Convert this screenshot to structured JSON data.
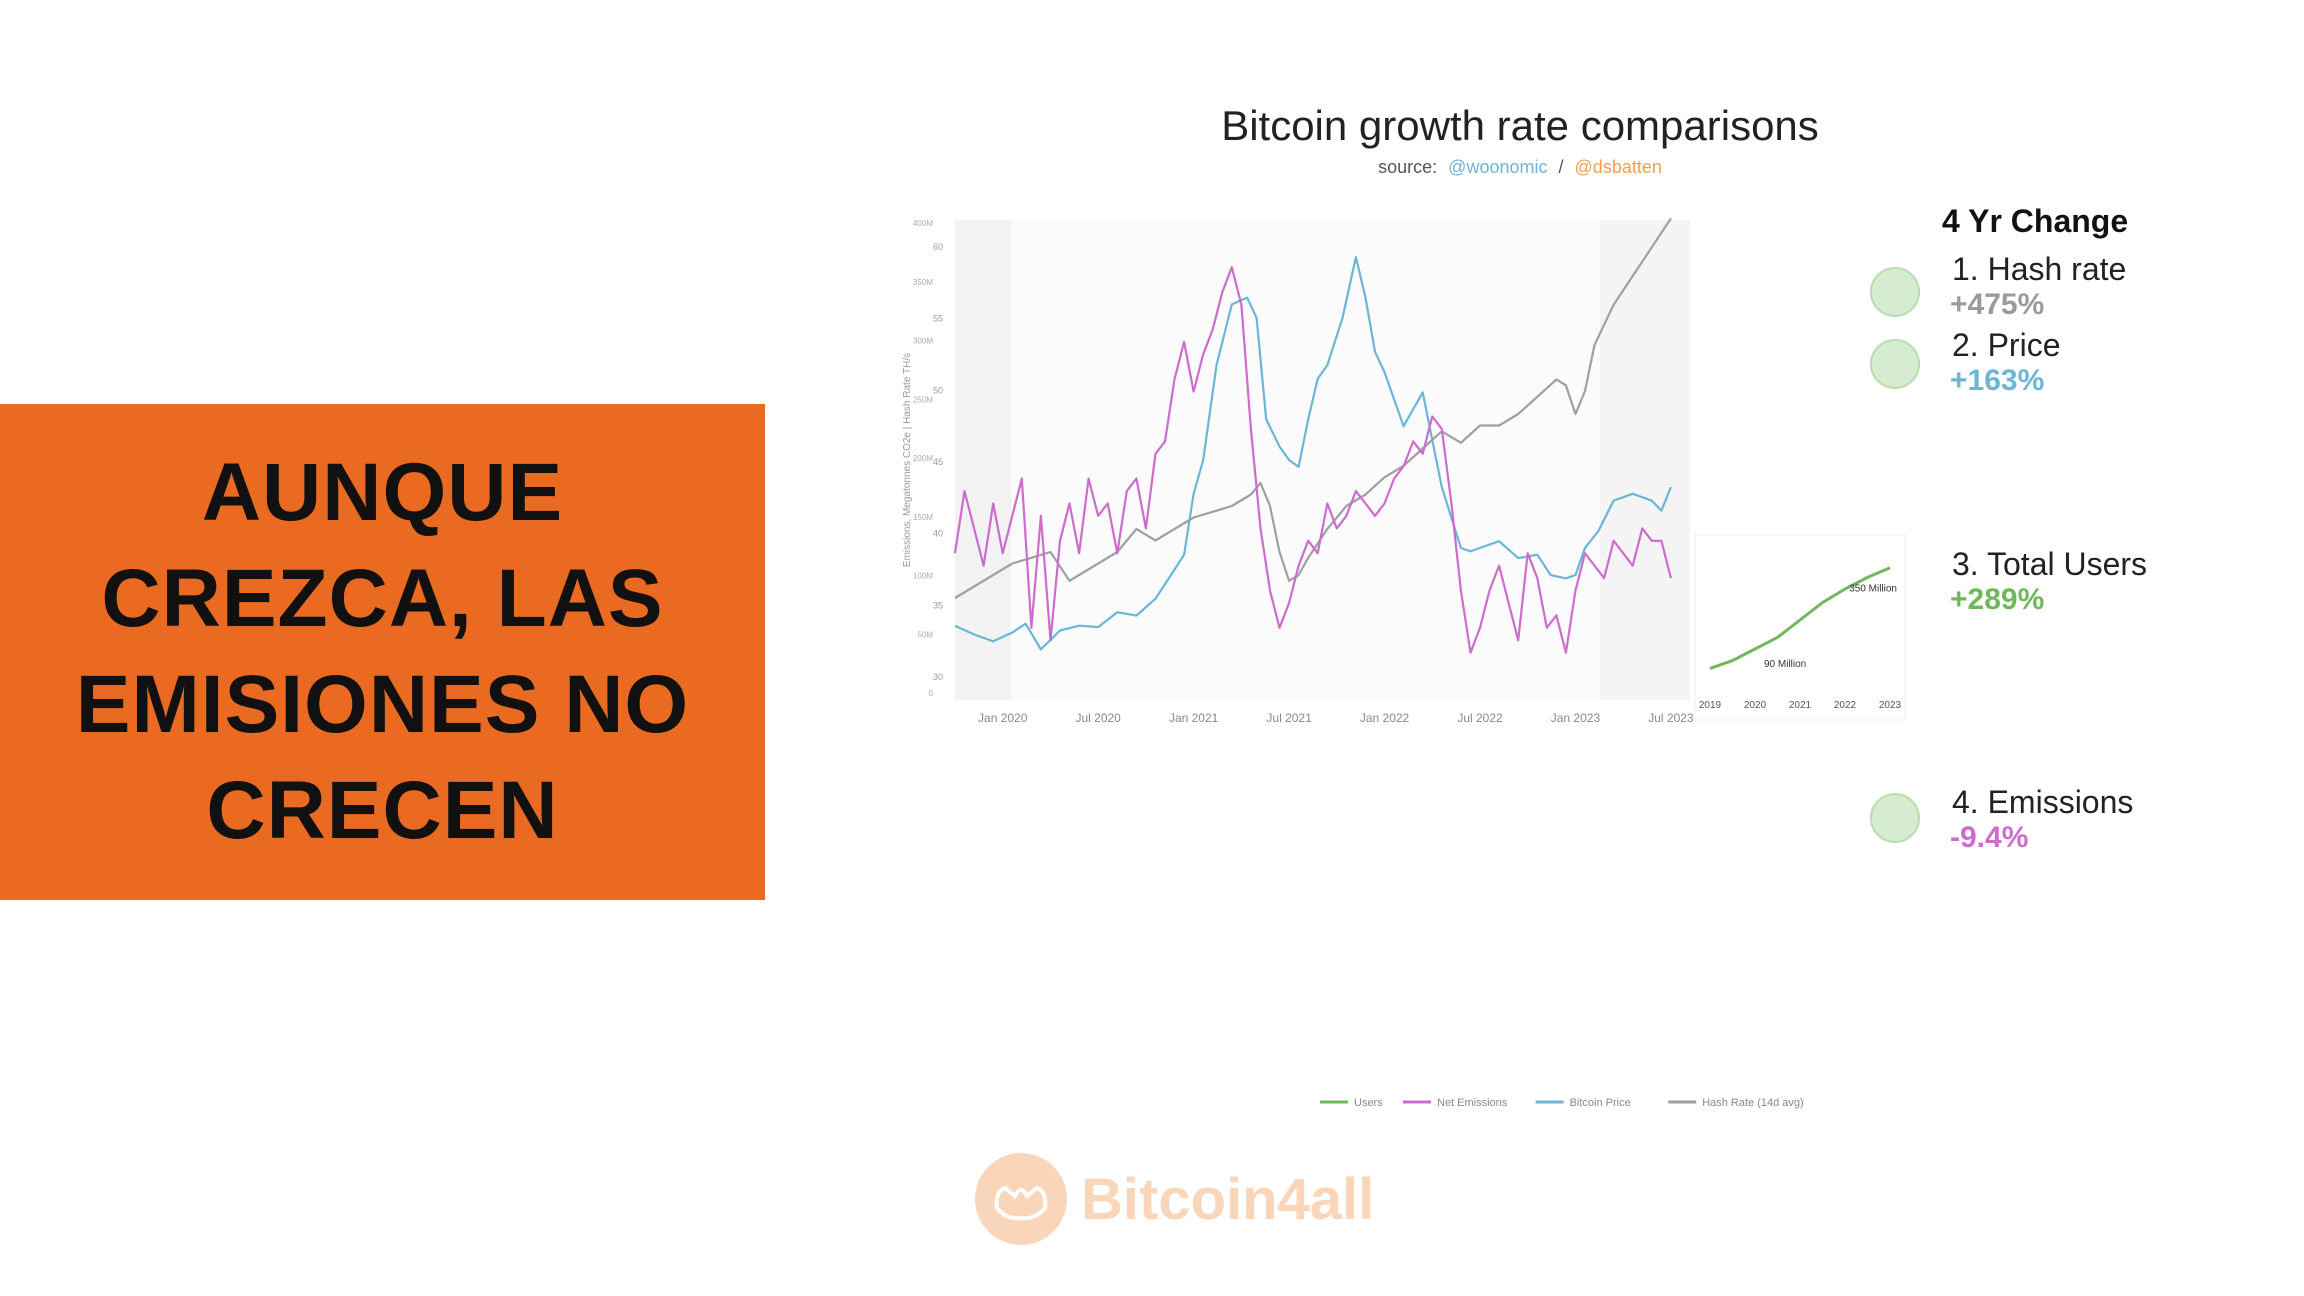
{
  "banner": {
    "lines": [
      "AUNQUE",
      "CREZCA, LAS",
      "EMISIONES NO",
      "CRECEN"
    ]
  },
  "chart_data": {
    "type": "line",
    "title": "Bitcoin growth rate comparisons",
    "source_prefix": "source:",
    "source_a": "@woonomic",
    "source_sep": "/",
    "source_b": "@dsbatten",
    "ylabel": "Emissions, Megatonnes CO2e | Hash Rate TH/s",
    "x_ticks": [
      "Jan 2020",
      "Jul 2020",
      "Jan 2021",
      "Jul 2021",
      "Jan 2022",
      "Jul 2022",
      "Jan 2023",
      "Jul 2023"
    ],
    "y_left_ticks": [
      "60",
      "55",
      "50",
      "45",
      "40",
      "35",
      "30"
    ],
    "y_right_ticks": [
      "400M",
      "350M",
      "300M",
      "250M",
      "200M",
      "150M",
      "100M",
      "50M",
      "0"
    ],
    "x_range": [
      2019.75,
      2023.6
    ],
    "emissions_range": [
      25,
      62
    ],
    "hash_range": [
      0,
      400
    ],
    "price_range": [
      0,
      68000
    ],
    "series": [
      {
        "name": "Bitcoin Price",
        "color": "#6bb6d6",
        "x": [
          2019.75,
          2019.85,
          2019.95,
          2020.05,
          2020.12,
          2020.2,
          2020.3,
          2020.4,
          2020.5,
          2020.6,
          2020.7,
          2020.8,
          2020.87,
          2020.95,
          2021.0,
          2021.05,
          2021.12,
          2021.2,
          2021.28,
          2021.33,
          2021.38,
          2021.45,
          2021.5,
          2021.55,
          2021.6,
          2021.65,
          2021.7,
          2021.78,
          2021.85,
          2021.9,
          2021.95,
          2022.0,
          2022.1,
          2022.2,
          2022.3,
          2022.4,
          2022.45,
          2022.5,
          2022.6,
          2022.7,
          2022.8,
          2022.87,
          2022.95,
          2023.0,
          2023.05,
          2023.12,
          2023.2,
          2023.3,
          2023.4,
          2023.45,
          2023.5
        ],
        "y": [
          9500,
          8200,
          7200,
          8500,
          9800,
          6000,
          8800,
          9500,
          9300,
          11500,
          11000,
          13500,
          16500,
          20000,
          29000,
          34000,
          48000,
          57000,
          58000,
          55000,
          40000,
          36000,
          34000,
          33000,
          40000,
          46000,
          48000,
          55000,
          64000,
          58000,
          50000,
          47000,
          39000,
          44000,
          30000,
          21000,
          20500,
          21000,
          22000,
          19500,
          20000,
          17000,
          16500,
          17000,
          21000,
          23500,
          28000,
          29000,
          28000,
          26500,
          30000
        ]
      },
      {
        "name": "Hash Rate (14d avg)",
        "color": "#a0a0a0",
        "x": [
          2019.75,
          2019.85,
          2019.95,
          2020.05,
          2020.15,
          2020.25,
          2020.35,
          2020.4,
          2020.5,
          2020.6,
          2020.7,
          2020.8,
          2020.9,
          2021.0,
          2021.1,
          2021.2,
          2021.3,
          2021.35,
          2021.4,
          2021.45,
          2021.5,
          2021.55,
          2021.6,
          2021.7,
          2021.8,
          2021.9,
          2022.0,
          2022.1,
          2022.2,
          2022.3,
          2022.4,
          2022.5,
          2022.6,
          2022.7,
          2022.8,
          2022.9,
          2022.95,
          2023.0,
          2023.05,
          2023.1,
          2023.2,
          2023.3,
          2023.4,
          2023.5
        ],
        "y": [
          80,
          90,
          100,
          110,
          115,
          120,
          95,
          100,
          110,
          120,
          140,
          130,
          140,
          150,
          155,
          160,
          170,
          180,
          160,
          120,
          95,
          100,
          115,
          140,
          160,
          170,
          185,
          195,
          210,
          225,
          215,
          230,
          230,
          240,
          255,
          270,
          265,
          240,
          260,
          300,
          335,
          360,
          385,
          410
        ]
      },
      {
        "name": "Net Emissions",
        "color": "#cc6ccc",
        "x": [
          2019.75,
          2019.8,
          2019.85,
          2019.9,
          2019.95,
          2020.0,
          2020.05,
          2020.1,
          2020.15,
          2020.2,
          2020.25,
          2020.3,
          2020.35,
          2020.4,
          2020.45,
          2020.5,
          2020.55,
          2020.6,
          2020.65,
          2020.7,
          2020.75,
          2020.8,
          2020.85,
          2020.9,
          2020.95,
          2021.0,
          2021.05,
          2021.1,
          2021.15,
          2021.2,
          2021.25,
          2021.3,
          2021.35,
          2021.4,
          2021.45,
          2021.5,
          2021.55,
          2021.6,
          2021.65,
          2021.7,
          2021.75,
          2021.8,
          2021.85,
          2021.9,
          2021.95,
          2022.0,
          2022.05,
          2022.1,
          2022.15,
          2022.2,
          2022.25,
          2022.3,
          2022.35,
          2022.4,
          2022.45,
          2022.5,
          2022.55,
          2022.6,
          2022.65,
          2022.7,
          2022.75,
          2022.8,
          2022.85,
          2022.9,
          2022.95,
          2023.0,
          2023.05,
          2023.1,
          2023.15,
          2023.2,
          2023.25,
          2023.3,
          2023.35,
          2023.4,
          2023.45,
          2023.5
        ],
        "y": [
          36,
          41,
          38,
          35,
          40,
          36,
          39,
          42,
          30,
          39,
          29,
          37,
          40,
          36,
          42,
          39,
          40,
          36,
          41,
          42,
          38,
          44,
          45,
          50,
          53,
          49,
          52,
          54,
          57,
          59,
          56,
          46,
          38,
          33,
          30,
          32,
          35,
          37,
          36,
          40,
          38,
          39,
          41,
          40,
          39,
          40,
          42,
          43,
          45,
          44,
          47,
          46,
          40,
          33,
          28,
          30,
          33,
          35,
          32,
          29,
          36,
          34,
          30,
          31,
          28,
          33,
          36,
          35,
          34,
          37,
          36,
          35,
          38,
          37,
          37,
          34
        ]
      },
      {
        "name": "Users",
        "color": "#6fb85a",
        "x": [],
        "y": []
      }
    ],
    "legend_position": "bottom",
    "changes_heading": "4 Yr Change",
    "changes": [
      {
        "label": "1. Hash rate",
        "value": "+475%",
        "color": "#9a9a9a"
      },
      {
        "label": "2. Price",
        "value": "+163%",
        "color": "#6bb6d6"
      },
      {
        "label": "3. Total Users",
        "value": "+289%",
        "color": "#6fb85a"
      },
      {
        "label": "4. Emissions",
        "value": "-9.4%",
        "color": "#cc6ccc"
      }
    ],
    "inset": {
      "x_ticks": [
        "2019",
        "2020",
        "2021",
        "2022",
        "2023"
      ],
      "annotations": [
        "350 Million",
        "90 Million"
      ],
      "users_x": [
        2019,
        2019.5,
        2020,
        2020.5,
        2021,
        2021.5,
        2022,
        2022.5,
        2023
      ],
      "users_y": [
        90,
        110,
        140,
        170,
        215,
        260,
        295,
        325,
        350
      ]
    }
  },
  "watermark": {
    "text": "Bitcoin4all",
    "icon": "hands-icon"
  }
}
